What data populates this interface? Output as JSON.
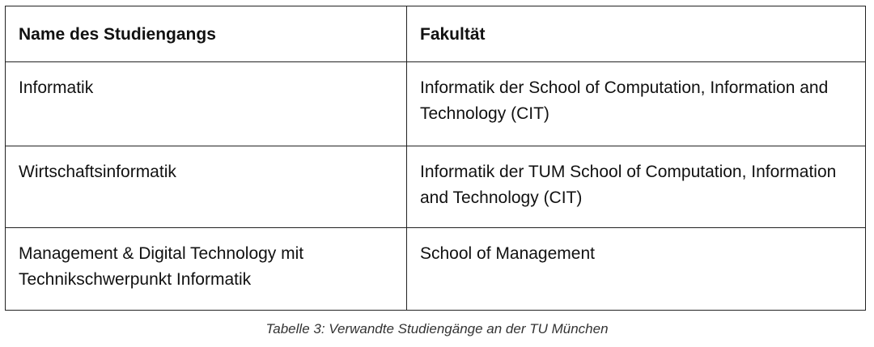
{
  "table": {
    "headers": [
      "Name des Studiengangs",
      "Fakultät"
    ],
    "rows": [
      [
        "Informatik",
        "Informatik der School of Computation, Information and Technology (CIT)"
      ],
      [
        "Wirtschaftsinformatik",
        "Informatik der TUM School of Computation, Information and Technology (CIT)"
      ],
      [
        "Management & Digital Technology mit Technikschwerpunkt Informatik",
        "School of Management"
      ]
    ]
  },
  "caption": "Tabelle 3: Verwandte Studiengänge an der TU München"
}
